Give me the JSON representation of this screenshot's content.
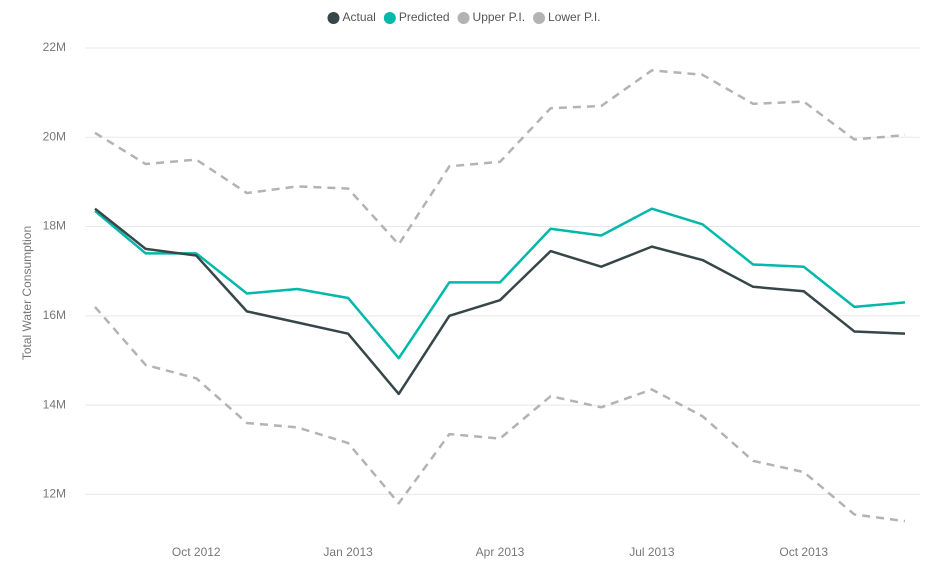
{
  "chart_data": {
    "type": "line",
    "y_label": "Total Water Consumption",
    "categories": [
      null,
      null,
      "Oct 2012",
      null,
      null,
      "Jan 2013",
      null,
      null,
      "Apr 2013",
      null,
      null,
      "Jul 2013",
      null,
      null,
      "Oct 2013",
      null,
      null
    ],
    "series": [
      {
        "name": "Actual",
        "color": "#374649",
        "dashed": false,
        "values": [
          18.4,
          17.5,
          17.35,
          16.1,
          15.85,
          15.6,
          14.25,
          16.0,
          16.35,
          17.45,
          17.1,
          17.55,
          17.25,
          16.65,
          16.55,
          15.65,
          15.6
        ]
      },
      {
        "name": "Predicted",
        "color": "#01B8AA",
        "dashed": false,
        "values": [
          18.35,
          17.4,
          17.4,
          16.5,
          16.6,
          16.4,
          15.05,
          16.75,
          16.75,
          17.95,
          17.8,
          18.4,
          18.05,
          17.15,
          17.1,
          16.2,
          16.3
        ]
      },
      {
        "name": "Upper P.I.",
        "color": "#b3b3b3",
        "dashed": true,
        "values": [
          20.1,
          19.4,
          19.5,
          18.75,
          18.9,
          18.85,
          17.6,
          19.35,
          19.45,
          20.65,
          20.7,
          21.5,
          21.4,
          20.75,
          20.8,
          19.95,
          20.05
        ]
      },
      {
        "name": "Lower P.I.",
        "color": "#b3b3b3",
        "dashed": true,
        "values": [
          16.2,
          14.9,
          14.6,
          13.6,
          13.5,
          13.15,
          11.8,
          13.35,
          13.25,
          14.2,
          13.95,
          14.35,
          13.75,
          12.75,
          12.5,
          11.55,
          11.4
        ]
      }
    ],
    "ylim": [
      11,
      22
    ],
    "yticks": [
      {
        "value": 12,
        "label": "12M"
      },
      {
        "value": 14,
        "label": "14M"
      },
      {
        "value": 16,
        "label": "16M"
      },
      {
        "value": 18,
        "label": "18M"
      },
      {
        "value": 20,
        "label": "20M"
      },
      {
        "value": 22,
        "label": "22M"
      }
    ],
    "grid": true,
    "legend": "top"
  }
}
